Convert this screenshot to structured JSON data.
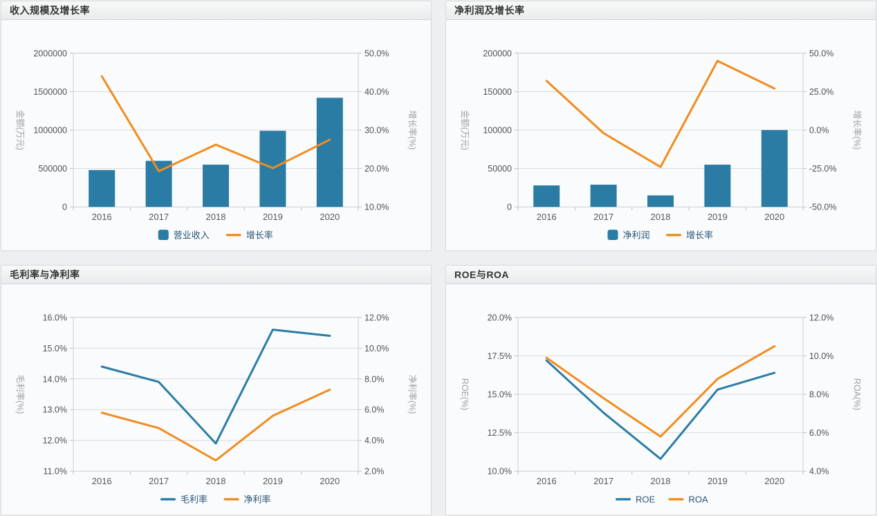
{
  "page": {
    "background": "#edeff1",
    "series_blue": "#2a7ca5",
    "series_orange": "#f28b1d",
    "legend_text_color": "#2b5578"
  },
  "chart_data": [
    {
      "type": "bar",
      "title": "收入规模及增长率",
      "categories": [
        "2016",
        "2017",
        "2018",
        "2019",
        "2020"
      ],
      "series": [
        {
          "name": "营业收入",
          "type": "bar",
          "axis": "left",
          "color": "#2a7ca5",
          "values": [
            480000,
            600000,
            550000,
            990000,
            1420000
          ]
        },
        {
          "name": "增长率",
          "type": "line",
          "axis": "right",
          "color": "#f28b1d",
          "values": [
            44,
            19.3,
            26.2,
            20.1,
            27.5
          ]
        }
      ],
      "left_axis": {
        "name": "金额(万元)",
        "min": 0,
        "max": 2000000,
        "tick_labels": [
          "0",
          "500000",
          "1000000",
          "1500000",
          "2000000"
        ]
      },
      "right_axis": {
        "name": "增长率(%)",
        "min": 10,
        "max": 50,
        "tick_labels": [
          "10.0%",
          "20.0%",
          "30.0%",
          "40.0%",
          "50.0%"
        ]
      },
      "legend_position": "bottom",
      "grid": true
    },
    {
      "type": "bar",
      "title": "净利润及增长率",
      "categories": [
        "2016",
        "2017",
        "2018",
        "2019",
        "2020"
      ],
      "series": [
        {
          "name": "净利润",
          "type": "bar",
          "axis": "left",
          "color": "#2a7ca5",
          "values": [
            28000,
            29000,
            15000,
            55000,
            100000
          ]
        },
        {
          "name": "增长率",
          "type": "line",
          "axis": "right",
          "color": "#f28b1d",
          "values": [
            32,
            -2,
            -24,
            45,
            27
          ]
        }
      ],
      "left_axis": {
        "name": "金额(万元)",
        "min": 0,
        "max": 200000,
        "tick_labels": [
          "0",
          "50000",
          "100000",
          "150000",
          "200000"
        ]
      },
      "right_axis": {
        "name": "增长率(%)",
        "min": -50,
        "max": 50,
        "tick_labels": [
          "-50.0%",
          "-25.0%",
          "0.0%",
          "25.0%",
          "50.0%"
        ]
      },
      "legend_position": "bottom",
      "grid": true
    },
    {
      "type": "line",
      "title": "毛利率与净利率",
      "categories": [
        "2016",
        "2017",
        "2018",
        "2019",
        "2020"
      ],
      "series": [
        {
          "name": "毛利率",
          "type": "line",
          "axis": "left",
          "color": "#2a7ca5",
          "values": [
            14.4,
            13.9,
            11.9,
            15.6,
            15.4
          ]
        },
        {
          "name": "净利率",
          "type": "line",
          "axis": "right",
          "color": "#f28b1d",
          "values": [
            5.8,
            4.8,
            2.7,
            5.6,
            7.3
          ]
        }
      ],
      "left_axis": {
        "name": "毛利率(%)",
        "min": 11,
        "max": 16,
        "tick_labels": [
          "11.0%",
          "12.0%",
          "13.0%",
          "14.0%",
          "15.0%",
          "16.0%"
        ]
      },
      "right_axis": {
        "name": "净利率(%)",
        "min": 2,
        "max": 12,
        "tick_labels": [
          "2.0%",
          "4.0%",
          "6.0%",
          "8.0%",
          "10.0%",
          "12.0%"
        ]
      },
      "legend_position": "bottom",
      "grid": true
    },
    {
      "type": "line",
      "title": "ROE与ROA",
      "categories": [
        "2016",
        "2017",
        "2018",
        "2019",
        "2020"
      ],
      "series": [
        {
          "name": "ROE",
          "type": "line",
          "axis": "left",
          "color": "#2a7ca5",
          "values": [
            17.2,
            13.8,
            10.8,
            15.3,
            16.4
          ]
        },
        {
          "name": "ROA",
          "type": "line",
          "axis": "right",
          "color": "#f28b1d",
          "values": [
            9.9,
            7.8,
            5.8,
            8.8,
            10.5
          ]
        }
      ],
      "left_axis": {
        "name": "ROE(%)",
        "min": 10,
        "max": 20,
        "tick_labels": [
          "10.0%",
          "12.5%",
          "15.0%",
          "17.5%",
          "20.0%"
        ]
      },
      "right_axis": {
        "name": "ROA(%)",
        "min": 4,
        "max": 12,
        "tick_labels": [
          "4.0%",
          "6.0%",
          "8.0%",
          "10.0%",
          "12.0%"
        ]
      },
      "legend_position": "bottom",
      "grid": true
    }
  ]
}
